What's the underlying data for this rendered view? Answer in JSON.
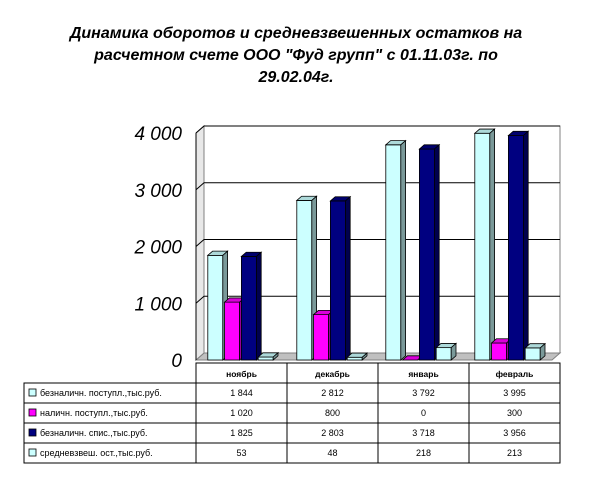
{
  "chart_data": {
    "type": "bar",
    "title_lines": [
      "Динамика оборотов и средневзвешенных остатков на",
      "расчетном счете ООО \"Фуд групп\" с 01.11.03г. по",
      "29.02.04г."
    ],
    "categories": [
      "ноябрь",
      "декабрь",
      "январь",
      "февраль"
    ],
    "ylim": [
      0,
      4000
    ],
    "yticks": [
      "0",
      "1 000",
      "2 000",
      "3 000",
      "4 000"
    ],
    "grid": true,
    "legend_placement": "table-below",
    "series": [
      {
        "name": "безналичн. поступл.,тыс.руб.",
        "values": [
          1844,
          2812,
          3792,
          3995
        ],
        "value_labels": [
          "1 844",
          "2 812",
          "3 792",
          "3 995"
        ],
        "color": "#ccffff"
      },
      {
        "name": "наличн. поступл.,тыс.руб.",
        "values": [
          1020,
          800,
          0,
          300
        ],
        "value_labels": [
          "1 020",
          "800",
          "0",
          "300"
        ],
        "color": "#ff00ff"
      },
      {
        "name": "безналичн. спис.,тыс.руб.",
        "values": [
          1825,
          2803,
          3718,
          3956
        ],
        "value_labels": [
          "1 825",
          "2 803",
          "3 718",
          "3 956"
        ],
        "color": "#000080"
      },
      {
        "name": "средневзвеш. ост.,тыс.руб.",
        "values": [
          53,
          48,
          218,
          213
        ],
        "value_labels": [
          "53",
          "48",
          "218",
          "213"
        ],
        "color": "#ccffff"
      }
    ]
  }
}
